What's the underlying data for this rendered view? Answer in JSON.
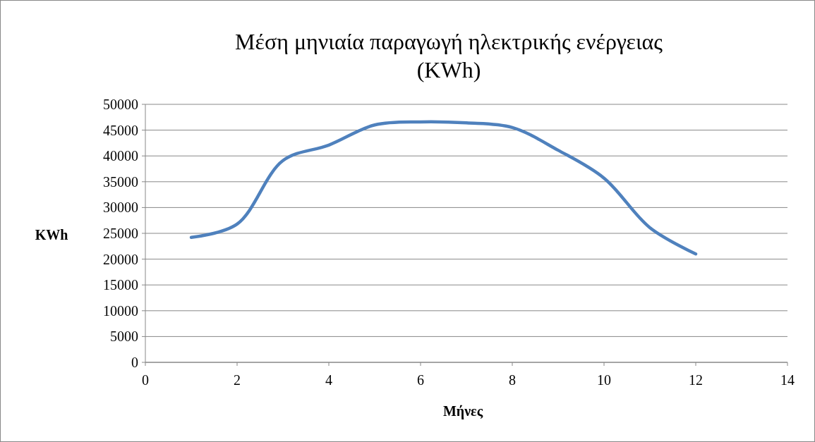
{
  "chart_data": {
    "type": "line",
    "title": "Μέση μηνιαία παραγωγή ηλεκτρικής ενέργειας",
    "subtitle": "(KWh)",
    "xlabel": "Μήνες",
    "ylabel": "KWh",
    "x": [
      1,
      2,
      3,
      4,
      5,
      6,
      7,
      8,
      9,
      10,
      11,
      12
    ],
    "series": [
      {
        "color": "#4f81bd",
        "values": [
          24200,
          26800,
          39100,
          42100,
          46000,
          46600,
          46400,
          45500,
          41100,
          35700,
          26100,
          21000
        ]
      }
    ],
    "xlim": [
      0,
      14
    ],
    "xticks": [
      0,
      2,
      4,
      6,
      8,
      10,
      12,
      14
    ],
    "ylim": [
      0,
      50000
    ],
    "yticks": [
      0,
      5000,
      10000,
      15000,
      20000,
      25000,
      30000,
      35000,
      40000,
      45000,
      50000
    ],
    "grid": "y",
    "line_style": "solid"
  }
}
